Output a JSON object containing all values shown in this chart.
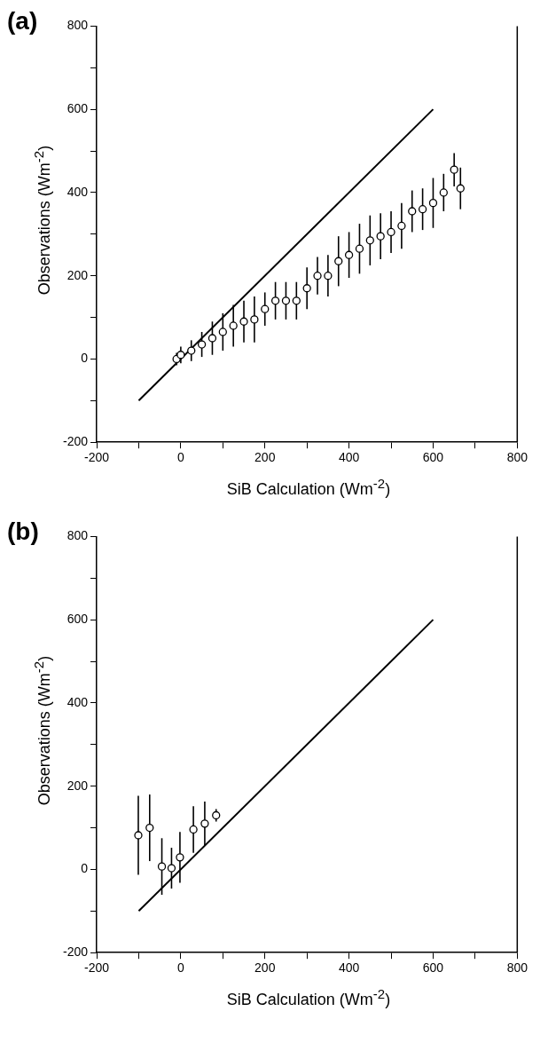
{
  "chart_data": [
    {
      "type": "scatter",
      "title": "(a)",
      "xlabel": "SiB Calculation (Wm$^{-2}$)",
      "ylabel": "Observations (Wm$^{-2}$)",
      "xlim": [
        -200,
        800
      ],
      "ylim": [
        -200,
        800
      ],
      "xticks": [
        -200,
        {
          "value": -100,
          "label": null
        },
        0,
        {
          "value": 100,
          "label": null
        },
        200,
        {
          "value": 300,
          "label": null
        },
        400,
        {
          "value": 500,
          "label": null
        },
        600,
        {
          "value": 700,
          "label": null
        },
        800
      ],
      "yticks": [
        -200,
        {
          "value": -100,
          "label": null
        },
        0,
        {
          "value": 100,
          "label": null
        },
        200,
        {
          "value": 300,
          "label": null
        },
        400,
        {
          "value": 500,
          "label": null
        },
        600,
        {
          "value": 700,
          "label": null
        },
        800
      ],
      "grid": false,
      "legend": false,
      "series": [
        {
          "type": "scatter",
          "color": "#000000",
          "marker": "circle",
          "x": [
            -10,
            0,
            25,
            50,
            75,
            100,
            125,
            150,
            175,
            200,
            225,
            250,
            275,
            300,
            325,
            350,
            375,
            400,
            425,
            450,
            475,
            500,
            525,
            550,
            575,
            600,
            625,
            650,
            665
          ],
          "values": [
            0,
            10,
            20,
            35,
            50,
            65,
            80,
            90,
            95,
            120,
            140,
            140,
            140,
            170,
            200,
            200,
            235,
            250,
            265,
            285,
            295,
            305,
            320,
            355,
            360,
            375,
            400,
            455,
            410
          ],
          "errors": [
            15,
            20,
            25,
            30,
            40,
            45,
            50,
            50,
            55,
            40,
            45,
            45,
            45,
            50,
            45,
            50,
            60,
            55,
            60,
            60,
            55,
            50,
            55,
            50,
            50,
            60,
            45,
            40,
            50
          ]
        },
        {
          "type": "line",
          "color": "#000000",
          "marker": "none",
          "line_style": "solid",
          "x": [
            -100,
            600
          ],
          "values": [
            -100,
            600
          ]
        }
      ]
    },
    {
      "type": "scatter",
      "title": "(b)",
      "xlabel": "SiB Calculation (Wm$^{-2}$)",
      "ylabel": "Observations (Wm$^{-2}$)",
      "xlim": [
        -200,
        800
      ],
      "ylim": [
        -200,
        800
      ],
      "xticks": [
        -200,
        {
          "value": -100,
          "label": null
        },
        0,
        {
          "value": 100,
          "label": null
        },
        200,
        {
          "value": 300,
          "label": null
        },
        400,
        {
          "value": 500,
          "label": null
        },
        600,
        {
          "value": 700,
          "label": null
        },
        800
      ],
      "yticks": [
        -200,
        {
          "value": -100,
          "label": null
        },
        0,
        {
          "value": 100,
          "label": null
        },
        200,
        {
          "value": 300,
          "label": null
        },
        400,
        {
          "value": 500,
          "label": null
        },
        600,
        {
          "value": 700,
          "label": null
        },
        800
      ],
      "grid": false,
      "legend": false,
      "series": [
        {
          "type": "scatter",
          "color": "#000000",
          "marker": "circle",
          "x": [
            -101,
            -74,
            -45,
            -22,
            -2,
            30,
            57,
            84
          ],
          "values": [
            82,
            100,
            7,
            3,
            29,
            96,
            110,
            130
          ],
          "errors": [
            95,
            80,
            68,
            49,
            61,
            56,
            53,
            15
          ]
        },
        {
          "type": "line",
          "color": "#000000",
          "marker": "none",
          "line_style": "solid",
          "x": [
            -100,
            600
          ],
          "values": [
            -100,
            600
          ]
        }
      ]
    }
  ]
}
